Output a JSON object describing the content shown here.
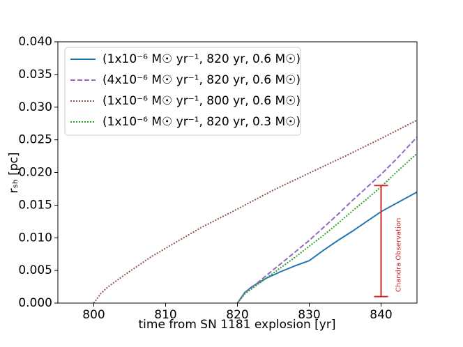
{
  "chart_data": {
    "type": "line",
    "x_label": "time from SN 1181 explosion [yr]",
    "y_label": "rₛₕ [pc]",
    "xlim": [
      795,
      845
    ],
    "xticks": [
      800,
      810,
      820,
      830,
      840
    ],
    "ylim": [
      0,
      0.04
    ],
    "yticks": [
      {
        "value": 0,
        "label": "0.000"
      },
      {
        "value": 0.005,
        "label": "0.005"
      },
      {
        "value": 0.01,
        "label": "0.010"
      },
      {
        "value": 0.015,
        "label": "0.015"
      },
      {
        "value": 0.02,
        "label": "0.020"
      },
      {
        "value": 0.025,
        "label": "0.025"
      },
      {
        "value": 0.03,
        "label": "0.030"
      },
      {
        "value": 0.035,
        "label": "0.035"
      },
      {
        "value": 0.04,
        "label": "0.040"
      }
    ],
    "legend": "upper left",
    "series": [
      {
        "name": "(1x10⁻⁶ M☉ yr⁻¹, 820 yr, 0.6 M☉)",
        "color": "#1f77b4",
        "dash": "solid",
        "x": [
          820,
          821,
          822,
          824,
          826,
          828,
          830,
          832,
          834,
          836,
          838,
          840,
          842,
          845
        ],
        "values": [
          0,
          0.0016,
          0.0025,
          0.0038,
          0.0048,
          0.0057,
          0.0065,
          0.0081,
          0.0096,
          0.011,
          0.0125,
          0.014,
          0.0152,
          0.017
        ]
      },
      {
        "name": "(4x10⁻⁶ M☉ yr⁻¹, 820 yr, 0.6 M☉)",
        "color": "#9467bd",
        "dash": "dashed",
        "x": [
          820,
          821,
          822,
          824,
          826,
          828,
          830,
          832,
          834,
          836,
          838,
          840,
          842,
          845
        ],
        "values": [
          0,
          0.0015,
          0.0024,
          0.0042,
          0.006,
          0.0078,
          0.0096,
          0.0116,
          0.0136,
          0.0157,
          0.0177,
          0.0197,
          0.0219,
          0.0254
        ]
      },
      {
        "name": "(1x10⁻⁶ M☉ yr⁻¹, 800 yr, 0.6 M☉)",
        "color": "#8c564b",
        "dash": "dotted",
        "x": [
          800,
          801,
          802,
          804,
          806,
          808,
          810,
          815,
          820,
          825,
          830,
          835,
          840,
          845
        ],
        "values": [
          0,
          0.0015,
          0.0025,
          0.0041,
          0.0056,
          0.0071,
          0.0084,
          0.0116,
          0.0144,
          0.0173,
          0.0199,
          0.0225,
          0.0252,
          0.028
        ]
      },
      {
        "name": "(1x10⁻⁶ M☉ yr⁻¹, 820 yr, 0.3 M☉)",
        "color": "#2ca02c",
        "dash": "dotted",
        "x": [
          820,
          821,
          822,
          824,
          826,
          828,
          830,
          832,
          834,
          836,
          838,
          840,
          842,
          845
        ],
        "values": [
          0,
          0.0014,
          0.0022,
          0.0038,
          0.0054,
          0.007,
          0.0087,
          0.0104,
          0.0122,
          0.0141,
          0.0159,
          0.0178,
          0.0199,
          0.0229
        ]
      }
    ],
    "errorbar": {
      "x": 840,
      "value": 0.0095,
      "error": 0.0085,
      "color": "#d62728",
      "annotation": "Chandra Observation"
    }
  }
}
